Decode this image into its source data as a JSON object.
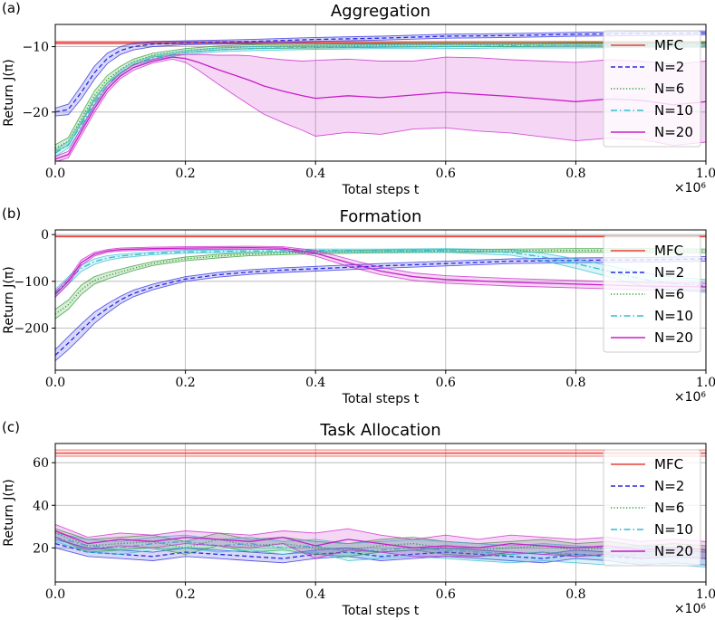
{
  "chart_data": [
    {
      "type": "line",
      "panel": "(a)",
      "title": "Aggregation",
      "xlabel": "Total steps t",
      "ylabel": "Return J(π)",
      "x_multiplier": "×10⁶",
      "xlim": [
        0,
        1.0
      ],
      "ylim": [
        -27.5,
        -6.6
      ],
      "xticks": [
        "0.0",
        "0.2",
        "0.4",
        "0.6",
        "0.8",
        "1.0"
      ],
      "yticks": [
        -10,
        -20
      ],
      "ytick_labels": [
        "−10",
        "−20"
      ],
      "grid": true,
      "legend_position": "right",
      "legend": [
        "MFC",
        "N=2",
        "N=6",
        "N=10",
        "N=20"
      ],
      "series": [
        {
          "name": "MFC",
          "color": "#e8413a",
          "style": "solid",
          "constant": -9.4,
          "band": 0.2
        },
        {
          "name": "N=2",
          "color": "#2828e0",
          "style": "dashed",
          "x": [
            0,
            0.02,
            0.04,
            0.06,
            0.08,
            0.1,
            0.12,
            0.15,
            0.2,
            0.3,
            0.4,
            0.5,
            0.6,
            0.7,
            0.8,
            0.9,
            1.0
          ],
          "y": [
            -20,
            -19.6,
            -17,
            -14,
            -11.8,
            -10.6,
            -10,
            -9.6,
            -9.4,
            -9.2,
            -8.9,
            -8.7,
            -8.4,
            -8.3,
            -8.1,
            -8.0,
            -7.9
          ],
          "band": [
            0.6,
            0.8,
            1.0,
            1.0,
            0.8,
            0.6,
            0.5,
            0.4,
            0.3,
            0.3,
            0.3,
            0.3,
            0.3,
            0.3,
            0.3,
            0.3,
            0.3
          ]
        },
        {
          "name": "N=6",
          "color": "#2e9a2e",
          "style": "dotted",
          "x": [
            0,
            0.02,
            0.04,
            0.06,
            0.08,
            0.1,
            0.12,
            0.15,
            0.2,
            0.25,
            0.3,
            0.4,
            0.5,
            0.6,
            0.7,
            0.8,
            0.9,
            1.0
          ],
          "y": [
            -25.5,
            -24.5,
            -21,
            -17.5,
            -15,
            -13.5,
            -12.3,
            -11.3,
            -10.6,
            -10.2,
            -10.0,
            -9.9,
            -9.8,
            -9.7,
            -9.7,
            -9.6,
            -9.6,
            -9.6
          ],
          "band": [
            0.5,
            0.6,
            0.7,
            0.7,
            0.6,
            0.5,
            0.4,
            0.3,
            0.3,
            0.3,
            0.3,
            0.3,
            0.3,
            0.3,
            0.3,
            0.3,
            0.3,
            0.3
          ]
        },
        {
          "name": "N=10",
          "color": "#2bbfd0",
          "style": "dashdot",
          "x": [
            0,
            0.02,
            0.04,
            0.06,
            0.08,
            0.1,
            0.12,
            0.15,
            0.2,
            0.25,
            0.3,
            0.4,
            0.5,
            0.6,
            0.7,
            0.8,
            0.9,
            1.0
          ],
          "y": [
            -26.3,
            -25,
            -22,
            -18.5,
            -16,
            -14,
            -12.8,
            -11.7,
            -10.9,
            -10.5,
            -10.3,
            -10.1,
            -10.0,
            -10.0,
            -9.9,
            -9.9,
            -9.8,
            -9.8
          ],
          "band": [
            0.5,
            0.5,
            0.6,
            0.6,
            0.5,
            0.4,
            0.4,
            0.3,
            0.3,
            0.3,
            0.3,
            0.3,
            0.3,
            0.3,
            0.3,
            0.3,
            0.3,
            0.3
          ]
        },
        {
          "name": "N=20",
          "color": "#c81ec8",
          "style": "solid",
          "x": [
            0,
            0.02,
            0.04,
            0.06,
            0.08,
            0.1,
            0.12,
            0.15,
            0.18,
            0.2,
            0.22,
            0.25,
            0.28,
            0.3,
            0.32,
            0.35,
            0.38,
            0.4,
            0.45,
            0.5,
            0.55,
            0.6,
            0.65,
            0.7,
            0.75,
            0.8,
            0.85,
            0.9,
            0.95,
            1.0
          ],
          "y": [
            -27.2,
            -26.5,
            -23,
            -19.5,
            -16.5,
            -14.5,
            -13.2,
            -12.2,
            -11.6,
            -11.8,
            -12.4,
            -13.5,
            -14.5,
            -15.2,
            -16,
            -16.8,
            -17.5,
            -17.9,
            -17.5,
            -17.8,
            -17.4,
            -17.0,
            -17.3,
            -17.6,
            -18.0,
            -18.4,
            -18.0,
            -18.2,
            -18.9,
            -18.4
          ],
          "band": [
            0.4,
            0.5,
            0.6,
            0.6,
            0.5,
            0.4,
            0.4,
            0.3,
            0.3,
            0.6,
            1.2,
            2.2,
            3.2,
            3.8,
            4.3,
            4.8,
            5.3,
            5.8,
            5.6,
            5.6,
            5.2,
            5.4,
            5.6,
            5.6,
            5.8,
            6.0,
            6.0,
            6.0,
            6.2,
            6.2
          ]
        }
      ]
    },
    {
      "type": "line",
      "panel": "(b)",
      "title": "Formation",
      "xlabel": "Total steps t",
      "ylabel": "Return J(π)",
      "x_multiplier": "×10⁶",
      "xlim": [
        0,
        1.0
      ],
      "ylim": [
        -290,
        10
      ],
      "xticks": [
        "0.0",
        "0.2",
        "0.4",
        "0.6",
        "0.8",
        "1.0"
      ],
      "yticks": [
        0,
        -100,
        -200
      ],
      "ytick_labels": [
        "0",
        "−100",
        "−200"
      ],
      "grid": true,
      "legend_position": "right",
      "legend": [
        "MFC",
        "N=2",
        "N=6",
        "N=10",
        "N=20"
      ],
      "series": [
        {
          "name": "MFC",
          "color": "#e8413a",
          "style": "solid",
          "constant": -4,
          "band": 1
        },
        {
          "name": "N=2",
          "color": "#2828e0",
          "style": "dashed",
          "x": [
            0,
            0.02,
            0.04,
            0.06,
            0.08,
            0.1,
            0.12,
            0.15,
            0.2,
            0.25,
            0.3,
            0.35,
            0.4,
            0.5,
            0.6,
            0.7,
            0.8,
            0.9,
            1.0
          ],
          "y": [
            -258,
            -232,
            -205,
            -178,
            -158,
            -140,
            -126,
            -112,
            -95,
            -86,
            -80,
            -76,
            -73,
            -67,
            -62,
            -57,
            -55,
            -54,
            -52
          ],
          "band": [
            12,
            14,
            14,
            12,
            10,
            8,
            7,
            6,
            5,
            5,
            5,
            5,
            5,
            5,
            5,
            5,
            5,
            5,
            5
          ]
        },
        {
          "name": "N=6",
          "color": "#2e9a2e",
          "style": "dotted",
          "x": [
            0,
            0.02,
            0.04,
            0.06,
            0.08,
            0.1,
            0.12,
            0.15,
            0.2,
            0.25,
            0.3,
            0.35,
            0.4,
            0.5,
            0.6,
            0.7,
            0.8,
            0.9,
            1.0
          ],
          "y": [
            -170,
            -150,
            -118,
            -98,
            -88,
            -80,
            -72,
            -62,
            -52,
            -46,
            -42,
            -40,
            -38,
            -36,
            -35,
            -34,
            -34,
            -34,
            -35
          ],
          "band": [
            10,
            10,
            10,
            8,
            7,
            6,
            5,
            4,
            4,
            4,
            3,
            3,
            3,
            3,
            3,
            3,
            4,
            4,
            4
          ]
        },
        {
          "name": "N=10",
          "color": "#2bbfd0",
          "style": "dashdot",
          "x": [
            0,
            0.02,
            0.04,
            0.06,
            0.08,
            0.1,
            0.15,
            0.2,
            0.3,
            0.4,
            0.5,
            0.6,
            0.7,
            0.75,
            0.8,
            0.85,
            0.9,
            0.95,
            1.0
          ],
          "y": [
            -125,
            -98,
            -72,
            -58,
            -50,
            -46,
            -40,
            -37,
            -35,
            -34,
            -34,
            -34,
            -38,
            -48,
            -62,
            -78,
            -95,
            -105,
            -110
          ],
          "band": [
            8,
            8,
            7,
            6,
            5,
            4,
            3,
            3,
            3,
            3,
            3,
            4,
            6,
            8,
            10,
            12,
            14,
            14,
            14
          ]
        },
        {
          "name": "N=20",
          "color": "#c81ec8",
          "style": "solid",
          "x": [
            0,
            0.02,
            0.04,
            0.06,
            0.08,
            0.1,
            0.15,
            0.2,
            0.3,
            0.35,
            0.4,
            0.45,
            0.5,
            0.55,
            0.6,
            0.7,
            0.8,
            0.9,
            1.0
          ],
          "y": [
            -128,
            -100,
            -60,
            -42,
            -35,
            -32,
            -30,
            -29,
            -28,
            -29,
            -40,
            -60,
            -78,
            -90,
            -96,
            -102,
            -106,
            -110,
            -112
          ],
          "band": [
            6,
            6,
            6,
            4,
            3,
            3,
            3,
            3,
            3,
            3,
            6,
            8,
            8,
            8,
            8,
            8,
            8,
            8,
            8
          ]
        }
      ]
    },
    {
      "type": "line",
      "panel": "(c)",
      "title": "Task Allocation",
      "xlabel": "Total steps t",
      "ylabel": "Return J(π)",
      "x_multiplier": "×10⁶",
      "xlim": [
        0,
        1.0
      ],
      "ylim": [
        4,
        69
      ],
      "xticks": [
        "0.0",
        "0.2",
        "0.4",
        "0.6",
        "0.8",
        "1.0"
      ],
      "yticks": [
        20,
        40,
        60
      ],
      "ytick_labels": [
        "20",
        "40",
        "60"
      ],
      "grid": true,
      "legend_position": "right",
      "legend": [
        "MFC",
        "N=2",
        "N=6",
        "N=10",
        "N=20"
      ],
      "series": [
        {
          "name": "MFC",
          "color": "#e8413a",
          "style": "solid",
          "constant": 64.5,
          "band": 1.5
        },
        {
          "name": "N=2",
          "color": "#2828e0",
          "style": "dashed",
          "x": [
            0,
            0.05,
            0.1,
            0.15,
            0.2,
            0.25,
            0.3,
            0.35,
            0.4,
            0.45,
            0.5,
            0.55,
            0.6,
            0.65,
            0.7,
            0.75,
            0.8,
            0.85,
            0.9,
            0.95,
            1.0
          ],
          "y": [
            22,
            18,
            17,
            16,
            18,
            17,
            16,
            15,
            17,
            18,
            16,
            17,
            18,
            17,
            16,
            15,
            17,
            16,
            15,
            16,
            15
          ],
          "band": [
            2,
            2,
            2,
            2,
            2,
            2,
            2,
            2,
            2,
            2,
            2,
            2,
            2,
            2,
            2,
            2,
            2,
            2,
            3,
            3,
            3
          ]
        },
        {
          "name": "N=6",
          "color": "#2e9a2e",
          "style": "dotted",
          "x": [
            0,
            0.05,
            0.1,
            0.15,
            0.2,
            0.25,
            0.3,
            0.35,
            0.4,
            0.45,
            0.5,
            0.55,
            0.6,
            0.65,
            0.7,
            0.75,
            0.8,
            0.85,
            0.9,
            0.95,
            1.0
          ],
          "y": [
            27,
            21,
            22,
            23,
            20,
            24,
            21,
            22,
            20,
            19,
            21,
            22,
            20,
            19,
            20,
            21,
            19,
            20,
            18,
            19,
            18
          ],
          "band": [
            2,
            3,
            3,
            3,
            3,
            3,
            3,
            3,
            3,
            3,
            3,
            3,
            3,
            3,
            3,
            3,
            3,
            3,
            3,
            3,
            3
          ]
        },
        {
          "name": "N=10",
          "color": "#2bbfd0",
          "style": "dashdot",
          "x": [
            0,
            0.05,
            0.1,
            0.15,
            0.2,
            0.25,
            0.3,
            0.35,
            0.4,
            0.45,
            0.5,
            0.55,
            0.6,
            0.65,
            0.7,
            0.75,
            0.8,
            0.85,
            0.9,
            0.95,
            1.0
          ],
          "y": [
            25,
            21,
            20,
            22,
            23,
            21,
            22,
            20,
            21,
            18,
            19,
            20,
            19,
            18,
            17,
            18,
            17,
            16,
            17,
            16,
            15
          ],
          "band": [
            2,
            3,
            3,
            3,
            3,
            3,
            3,
            3,
            3,
            4,
            4,
            4,
            4,
            4,
            4,
            4,
            4,
            4,
            4,
            4,
            4
          ]
        },
        {
          "name": "N=20",
          "color": "#c81ec8",
          "style": "solid",
          "x": [
            0,
            0.05,
            0.1,
            0.15,
            0.2,
            0.25,
            0.3,
            0.35,
            0.4,
            0.45,
            0.5,
            0.55,
            0.6,
            0.65,
            0.7,
            0.75,
            0.8,
            0.85,
            0.9,
            0.95,
            1.0
          ],
          "y": [
            28,
            22,
            24,
            23,
            25,
            24,
            23,
            25,
            21,
            24,
            22,
            20,
            21,
            20,
            22,
            21,
            20,
            21,
            19,
            20,
            19
          ],
          "band": [
            3,
            3,
            3,
            3,
            3,
            3,
            3,
            3,
            6,
            5,
            4,
            4,
            5,
            4,
            4,
            4,
            4,
            4,
            4,
            4,
            4
          ]
        }
      ]
    }
  ]
}
